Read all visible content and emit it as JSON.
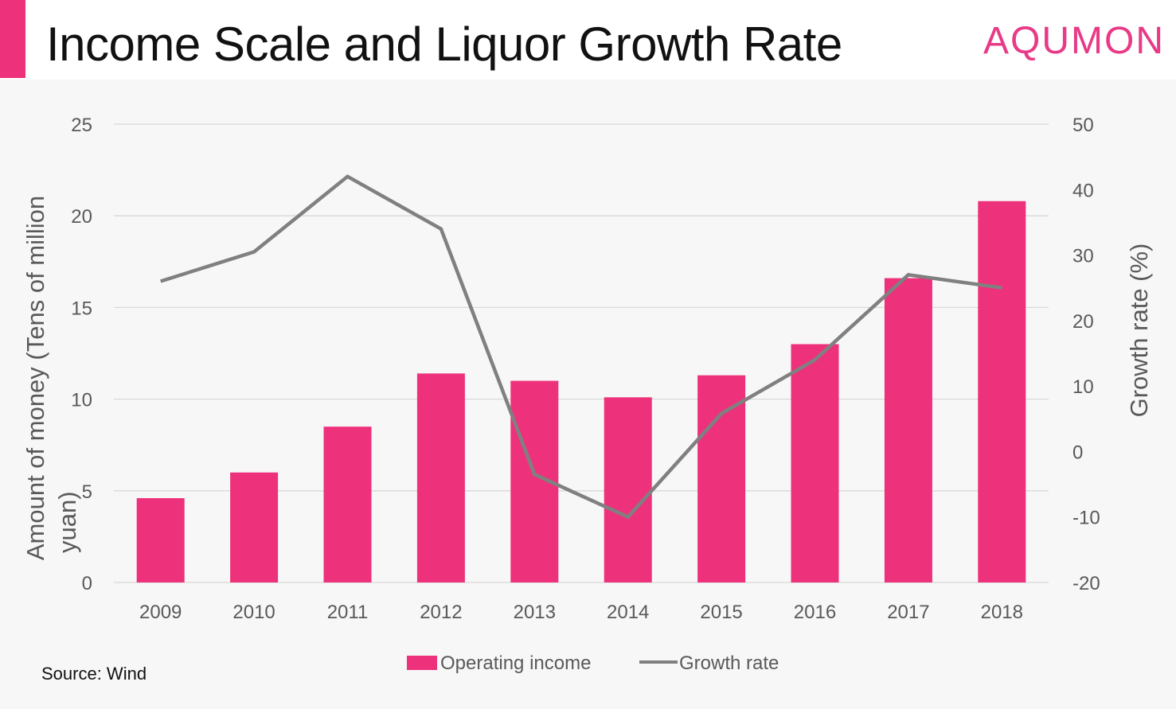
{
  "header": {
    "title": "Income Scale and Liquor Growth Rate",
    "logo": "AQUMON"
  },
  "source": "Source: Wind",
  "colors": {
    "accent": "#ee317b",
    "logo": "#e83a86",
    "bar": "#ee317b",
    "line": "#808080",
    "grid": "#d9d9d9",
    "tick_text": "#595959"
  },
  "chart_data": {
    "type": "bar",
    "title": "",
    "categories": [
      "2009",
      "2010",
      "2011",
      "2012",
      "2013",
      "2014",
      "2015",
      "2016",
      "2017",
      "2018"
    ],
    "series": [
      {
        "name": "Operating income",
        "type": "bar",
        "axis": "left",
        "values": [
          4.6,
          6.0,
          8.5,
          11.4,
          11.0,
          10.1,
          11.3,
          13.0,
          16.6,
          20.8
        ]
      },
      {
        "name": "Growth rate",
        "type": "line",
        "axis": "right",
        "values": [
          26,
          30.5,
          42,
          34,
          -3.5,
          -10,
          5.8,
          14,
          27,
          25
        ]
      }
    ],
    "ylabel": "Amount of money (Tens of million yuan)",
    "ylabel_right": "Growth rate (%)",
    "ylim": [
      0,
      25
    ],
    "yticks": [
      "0",
      "5",
      "10",
      "15",
      "20",
      "25"
    ],
    "ylim_right": [
      -20,
      50
    ],
    "yticks_right": [
      "-20",
      "-10",
      "0",
      "10",
      "20",
      "30",
      "40",
      "50"
    ],
    "grid": true,
    "legend": "bottom"
  }
}
